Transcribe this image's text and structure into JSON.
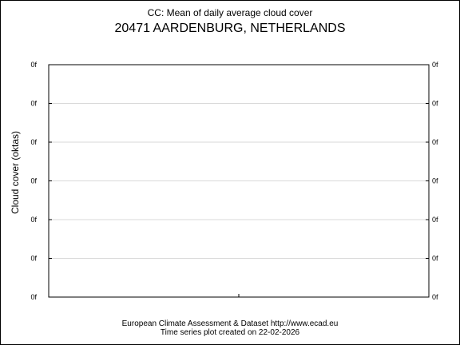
{
  "chart_data": {
    "type": "line",
    "title": "CC: Mean of daily average cloud cover",
    "subtitle": "20471 AARDENBURG, NETHERLANDS",
    "ylabel": "Cloud cover (oktas)",
    "xlabel": "",
    "y_tick_labels": [
      "0f",
      "0f",
      "0f",
      "0f",
      "0f",
      "0f",
      "0f"
    ],
    "grid": true,
    "series": [],
    "colors": {
      "grid": "#d9d9d9",
      "axis": "#000000",
      "background": "#ffffff"
    }
  },
  "footer": {
    "line1": "European Climate Assessment & Dataset  http://www.ecad.eu",
    "line2": "Time series plot created on 22-02-2026"
  }
}
